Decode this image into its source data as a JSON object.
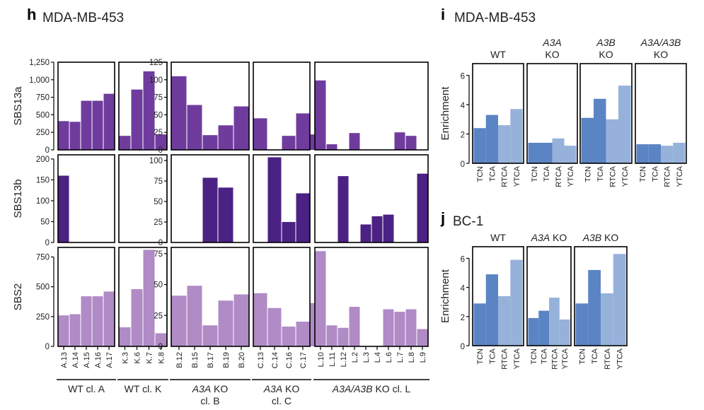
{
  "panels": {
    "h": {
      "letter": "h",
      "title": "MDA-MB-453"
    },
    "i": {
      "letter": "i",
      "title": "MDA-MB-453"
    },
    "j": {
      "letter": "j",
      "title": "BC-1"
    }
  },
  "chart_data": [
    {
      "id": "h",
      "type": "bar",
      "title": "MDA-MB-453",
      "colors": {
        "SBS13a": "#6f3c9e",
        "SBS13b": "#4b2283",
        "SBS2": "#b08bc6"
      },
      "groups": [
        {
          "name": "WT cl. A",
          "italic_prefix": "",
          "label_lines": [
            "WT cl. A"
          ],
          "samples": [
            "A.13",
            "A.14",
            "A.15",
            "A.16",
            "A.17"
          ],
          "highlighted": [
            "A.14"
          ]
        },
        {
          "name": "WT cl. K",
          "italic_prefix": "",
          "label_lines": [
            "WT cl. K"
          ],
          "samples": [
            "K.3",
            "K.6",
            "K.7",
            "K.8"
          ],
          "highlighted": []
        },
        {
          "name": "A3A KO cl. B",
          "italic_prefix": "A3A",
          "label_lines": [
            " KO",
            "cl. B"
          ],
          "samples": [
            "B.12",
            "B.15",
            "B.17",
            "B.19",
            "B.20"
          ],
          "highlighted": []
        },
        {
          "name": "A3A KO cl. C",
          "italic_prefix": "A3A",
          "label_lines": [
            " KO",
            "cl. C"
          ],
          "samples": [
            "C.13",
            "C.14",
            "C.16",
            "C.17"
          ],
          "highlighted": []
        },
        {
          "name": "A3A/A3B KO cl. L",
          "italic_prefix": "A3A/A3B",
          "label_lines": [
            " KO cl. L"
          ],
          "samples": [
            "L.10",
            "L.11",
            "L.12",
            "L.2",
            "L.3",
            "L.4",
            "L.6",
            "L.7",
            "L.8",
            "L.9"
          ],
          "highlighted": [
            "L.9"
          ]
        }
      ],
      "rows": [
        {
          "signature": "SBS13a",
          "scales": [
            {
              "ylim": [
                0,
                1250
              ],
              "ticks": [
                "0",
                "250",
                "500",
                "750",
                "1,000",
                "1,250"
              ],
              "tick_values": [
                0,
                250,
                500,
                750,
                1000,
                1250
              ]
            },
            {
              "ylim": [
                0,
                125
              ],
              "ticks": [
                "0",
                "25",
                "50",
                "75",
                "100",
                "125"
              ],
              "tick_values": [
                0,
                25,
                50,
                75,
                100,
                125
              ]
            }
          ],
          "values": [
            [
              410,
              400,
              700,
              700,
              800
            ],
            [
              200,
              860,
              1120,
              220
            ],
            [
              105,
              64,
              21,
              35,
              62
            ],
            [
              45,
              0,
              20,
              52,
              22
            ],
            [
              99,
              8,
              0,
              24,
              0,
              0,
              0,
              25,
              20,
              0
            ]
          ]
        },
        {
          "signature": "SBS13b",
          "scales": [
            {
              "ylim": [
                0,
                210
              ],
              "ticks": [
                "0",
                "50",
                "100",
                "150",
                "200"
              ],
              "tick_values": [
                0,
                50,
                100,
                150,
                200
              ]
            },
            {
              "ylim": [
                0,
                107
              ],
              "ticks": [
                "0",
                "25",
                "50",
                "75",
                "100"
              ],
              "tick_values": [
                0,
                25,
                50,
                75,
                100
              ]
            }
          ],
          "values": [
            [
              160,
              0,
              0,
              0,
              0
            ],
            [
              0,
              0,
              0,
              0
            ],
            [
              0,
              0,
              79,
              67,
              0
            ],
            [
              0,
              104,
              25,
              60
            ],
            [
              0,
              0,
              81,
              0,
              22,
              32,
              34,
              0,
              0,
              84
            ]
          ]
        },
        {
          "signature": "SBS2",
          "scales": [
            {
              "ylim": [
                0,
                830
              ],
              "ticks": [
                "0",
                "250",
                "500",
                "750"
              ],
              "tick_values": [
                0,
                250,
                500,
                750
              ]
            },
            {
              "ylim": [
                0,
                80
              ],
              "ticks": [
                "0",
                "25",
                "50",
                "75"
              ],
              "tick_values": [
                0,
                25,
                50,
                75
              ]
            }
          ],
          "values": [
            [
              260,
              270,
              420,
              420,
              460
            ],
            [
              160,
              480,
              810,
              110
            ],
            [
              41,
              49,
              17,
              37,
              42
            ],
            [
              43,
              31,
              16,
              20,
              35
            ],
            [
              77,
              17,
              15,
              32,
              0,
              0,
              30,
              28,
              30,
              14
            ]
          ]
        }
      ]
    },
    {
      "id": "i",
      "type": "bar",
      "title": "MDA-MB-453",
      "ylabel": "Enrichment",
      "ylim": [
        0,
        6.8
      ],
      "ticks": [
        "0",
        "2",
        "4",
        "6"
      ],
      "tick_values": [
        0,
        2,
        4,
        6
      ],
      "categories": [
        "TCN",
        "TCA",
        "RTCA",
        "YTCA"
      ],
      "colors": [
        "#5b84c4",
        "#5b84c4",
        "#97b2da",
        "#97b2da"
      ],
      "series": [
        {
          "name": "WT",
          "label_lines": [
            {
              "text": "WT",
              "italic": false
            }
          ],
          "values": [
            2.4,
            3.3,
            2.6,
            3.7
          ]
        },
        {
          "name": "A3A KO",
          "label_lines": [
            {
              "text": "A3A",
              "italic": true
            },
            {
              "text": "KO",
              "italic": false
            }
          ],
          "values": [
            1.4,
            1.4,
            1.7,
            1.2
          ]
        },
        {
          "name": "A3B KO",
          "label_lines": [
            {
              "text": "A3B",
              "italic": true
            },
            {
              "text": "KO",
              "italic": false
            }
          ],
          "values": [
            3.1,
            4.4,
            3.0,
            5.3
          ]
        },
        {
          "name": "A3A/A3B KO",
          "label_lines": [
            {
              "text": "A3A/A3B",
              "italic": true
            },
            {
              "text": "KO",
              "italic": false
            }
          ],
          "values": [
            1.3,
            1.3,
            1.2,
            1.4
          ]
        }
      ]
    },
    {
      "id": "j",
      "type": "bar",
      "title": "BC-1",
      "ylabel": "Enrichment",
      "ylim": [
        0,
        6.8
      ],
      "ticks": [
        "0",
        "2",
        "4",
        "6"
      ],
      "tick_values": [
        0,
        2,
        4,
        6
      ],
      "categories": [
        "TCN",
        "TCA",
        "RTCA",
        "YTCA"
      ],
      "colors": [
        "#5b84c4",
        "#5b84c4",
        "#97b2da",
        "#97b2da"
      ],
      "series": [
        {
          "name": "WT",
          "italic_prefix": "",
          "rest": "WT",
          "values": [
            2.9,
            4.9,
            3.4,
            5.9
          ]
        },
        {
          "name": "A3A KO",
          "italic_prefix": "A3A",
          "rest": " KO",
          "values": [
            1.9,
            2.4,
            3.3,
            1.8
          ]
        },
        {
          "name": "A3B KO",
          "italic_prefix": "A3B",
          "rest": " KO",
          "values": [
            2.9,
            5.2,
            3.6,
            6.3
          ]
        }
      ]
    }
  ]
}
